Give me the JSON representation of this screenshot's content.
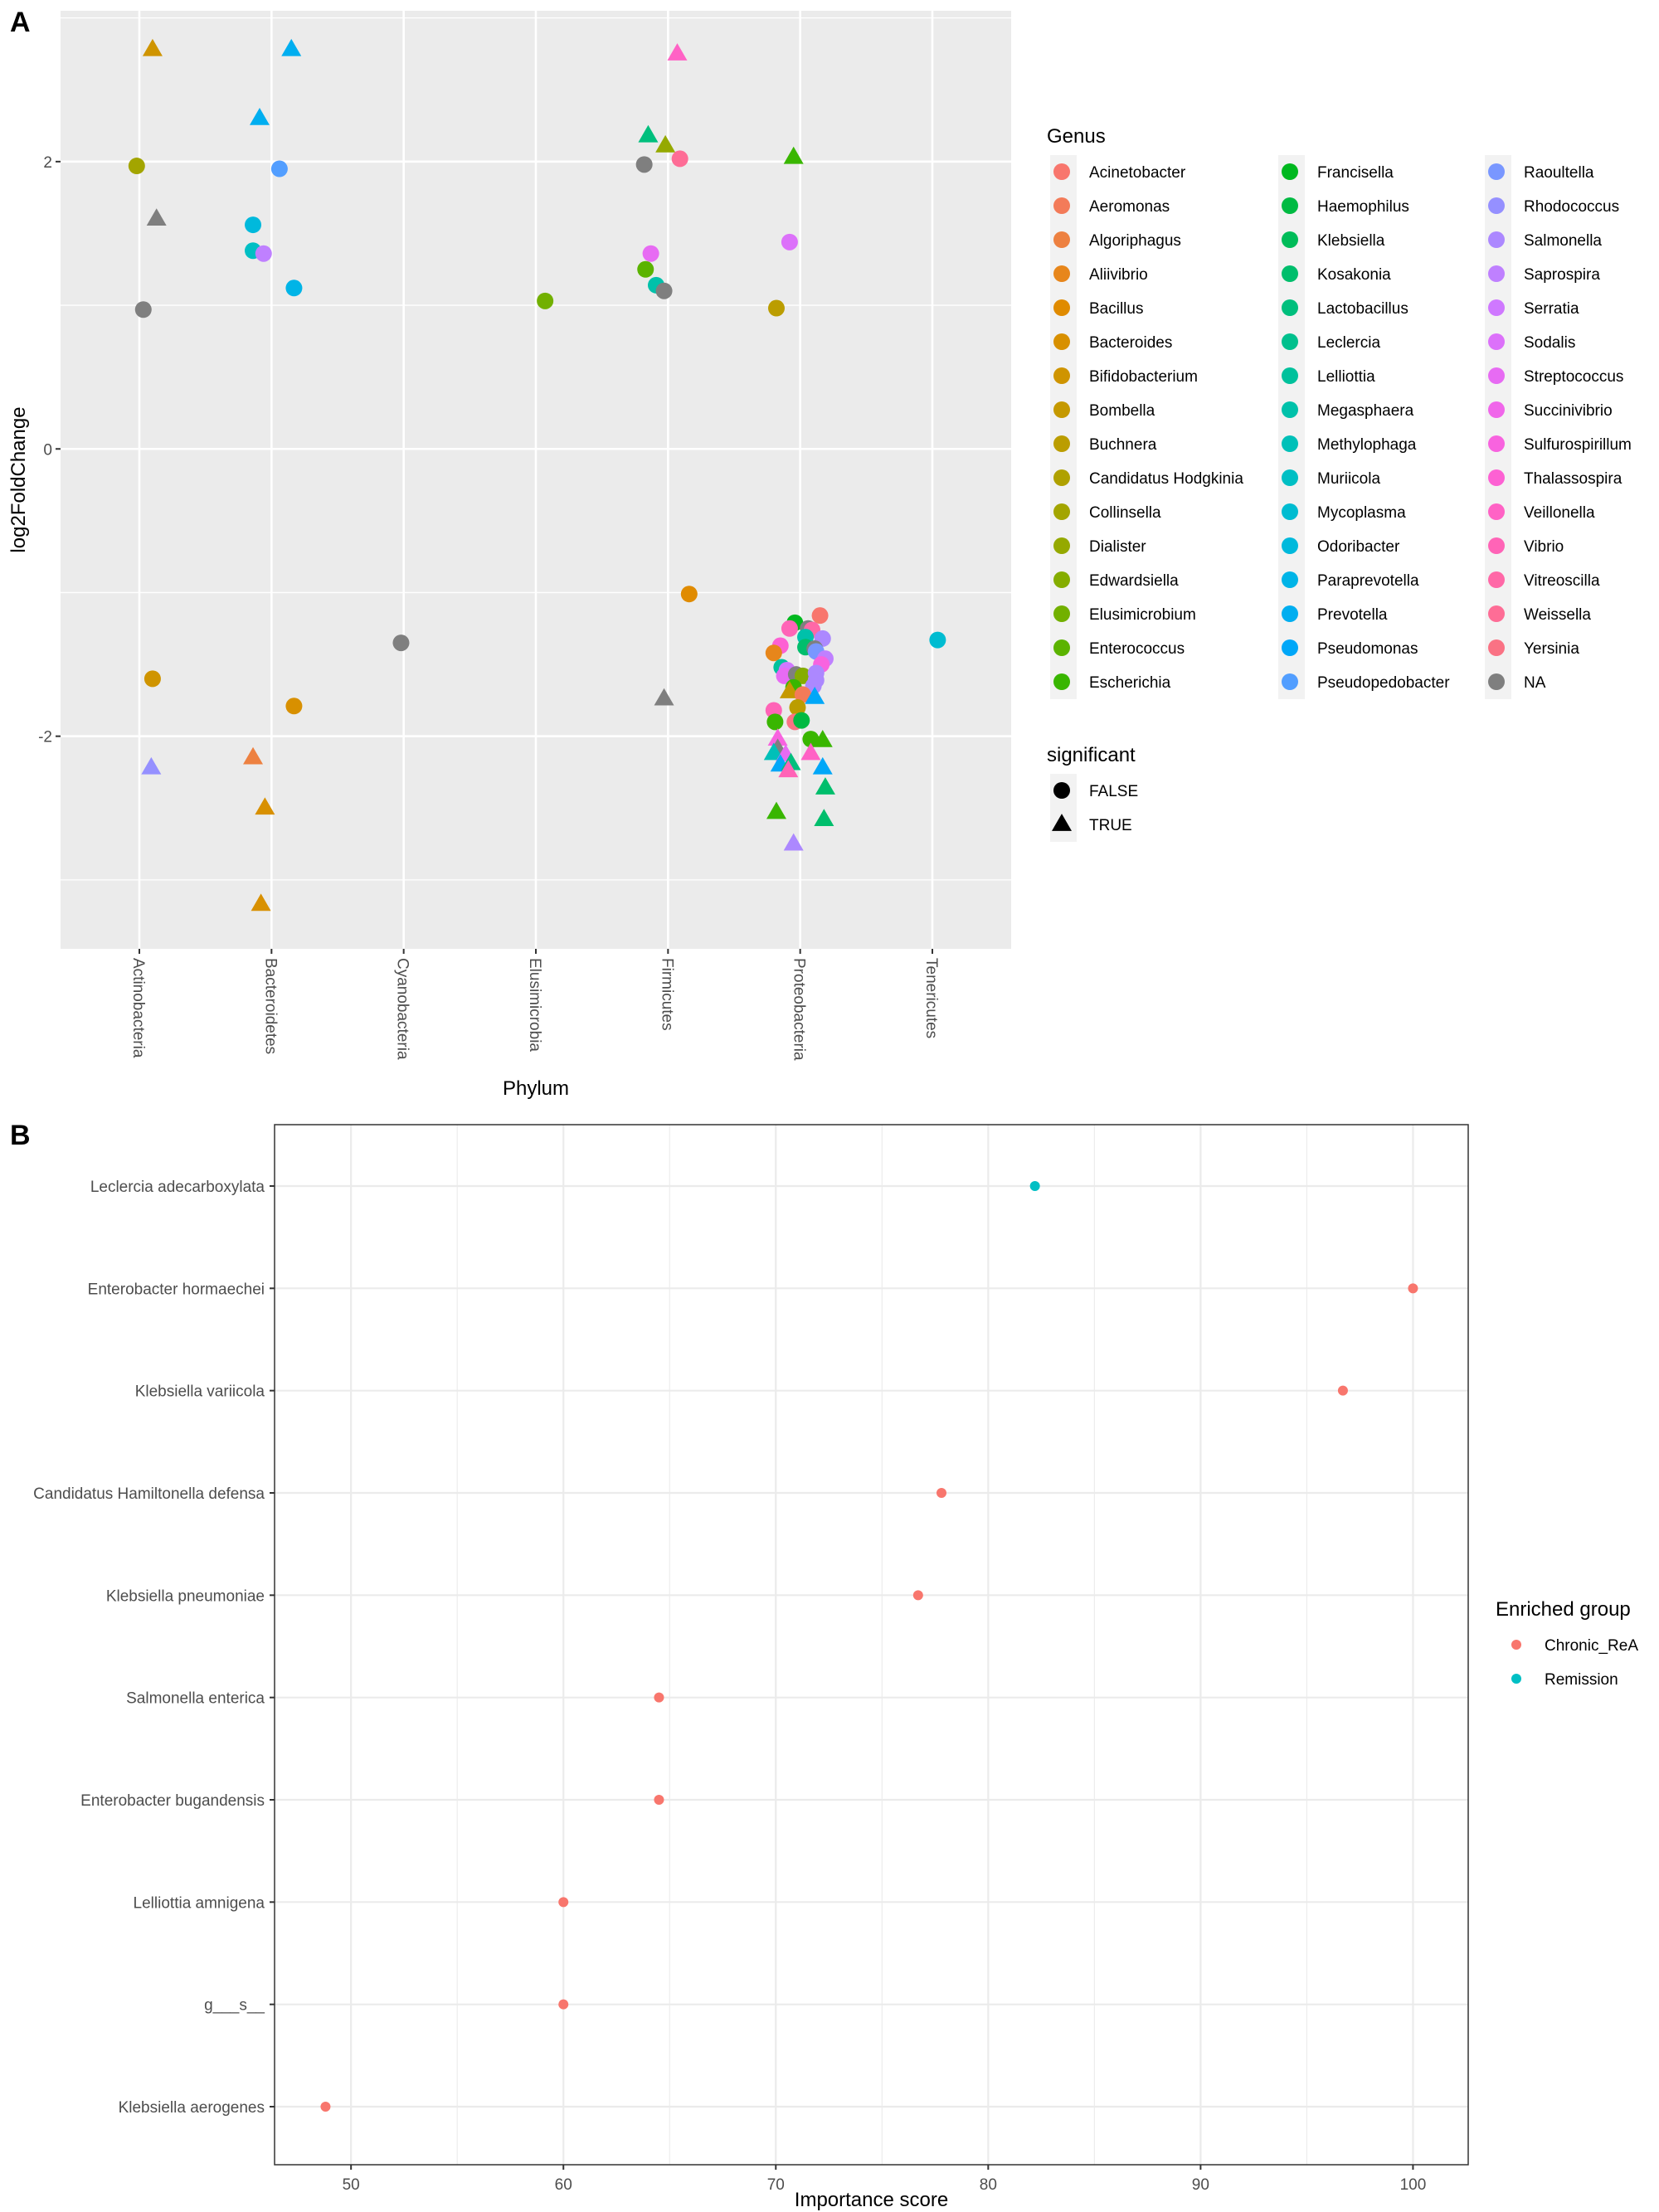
{
  "chart_data": [
    {
      "panel": "A",
      "type": "scatter",
      "xlabel": "Phylum",
      "ylabel": "log2FoldChange",
      "x_type": "categorical",
      "categories": [
        "Actinobacteria",
        "Bacteroidetes",
        "Cyanobacteria",
        "Elusimicrobia",
        "Firmicutes",
        "Proteobacteria",
        "Tenericutes"
      ],
      "ylim": [
        -3.48,
        3.05
      ],
      "yticks": [
        -2,
        0,
        2
      ],
      "ytick_labels": [
        "-2",
        "0",
        "2"
      ],
      "grid": true,
      "legend_color_title": "Genus",
      "legend_shape_title": "significant",
      "legend_placement": "right",
      "genus_legend": [
        {
          "name": "Acinetobacter",
          "color": "#F8766D"
        },
        {
          "name": "Aeromonas",
          "color": "#F37B59"
        },
        {
          "name": "Algoriphagus",
          "color": "#ED8141"
        },
        {
          "name": "Aliivibrio",
          "color": "#E7861B"
        },
        {
          "name": "Bacillus",
          "color": "#E08B00"
        },
        {
          "name": "Bacteroides",
          "color": "#D89000"
        },
        {
          "name": "Bifidobacterium",
          "color": "#CF9400"
        },
        {
          "name": "Bombella",
          "color": "#C59900"
        },
        {
          "name": "Buchnera",
          "color": "#BB9D00"
        },
        {
          "name": "Candidatus Hodgkinia",
          "color": "#AFA100"
        },
        {
          "name": "Collinsella",
          "color": "#A3A500"
        },
        {
          "name": "Dialister",
          "color": "#95A900"
        },
        {
          "name": "Edwardsiella",
          "color": "#85AD00"
        },
        {
          "name": "Elusimicrobium",
          "color": "#72B000"
        },
        {
          "name": "Enterococcus",
          "color": "#5BB300"
        },
        {
          "name": "Escherichia",
          "color": "#39B600"
        },
        {
          "name": "Francisella",
          "color": "#00B81F"
        },
        {
          "name": "Haemophilus",
          "color": "#00BA42"
        },
        {
          "name": "Klebsiella",
          "color": "#00BC59"
        },
        {
          "name": "Kosakonia",
          "color": "#00BE6C"
        },
        {
          "name": "Lactobacillus",
          "color": "#00BF7D"
        },
        {
          "name": "Leclercia",
          "color": "#00C08D"
        },
        {
          "name": "Lelliottia",
          "color": "#00C19C"
        },
        {
          "name": "Megasphaera",
          "color": "#00C1AA"
        },
        {
          "name": "Methylophaga",
          "color": "#00C0B8"
        },
        {
          "name": "Muriicola",
          "color": "#00BFC4"
        },
        {
          "name": "Mycoplasma",
          "color": "#00BCD1"
        },
        {
          "name": "Odoribacter",
          "color": "#00B9DC"
        },
        {
          "name": "Paraprevotella",
          "color": "#00B4E7"
        },
        {
          "name": "Prevotella",
          "color": "#00AEF0"
        },
        {
          "name": "Pseudomonas",
          "color": "#00A7F8"
        },
        {
          "name": "Pseudopedobacter",
          "color": "#529EFF"
        },
        {
          "name": "Raoultella",
          "color": "#7997FF"
        },
        {
          "name": "Rhodococcus",
          "color": "#9590FF"
        },
        {
          "name": "Salmonella",
          "color": "#AC88FF"
        },
        {
          "name": "Saprospira",
          "color": "#BF80FF"
        },
        {
          "name": "Serratia",
          "color": "#CF78FF"
        },
        {
          "name": "Sodalis",
          "color": "#DC71FA"
        },
        {
          "name": "Streptococcus",
          "color": "#E76BF3"
        },
        {
          "name": "Succinivibrio",
          "color": "#F066EA"
        },
        {
          "name": "Sulfurospirillum",
          "color": "#F863DF"
        },
        {
          "name": "Thalassospira",
          "color": "#FD61D3"
        },
        {
          "name": "Veillonella",
          "color": "#FF62C5"
        },
        {
          "name": "Vibrio",
          "color": "#FF64B7"
        },
        {
          "name": "Vitreoscilla",
          "color": "#FF68A7"
        },
        {
          "name": "Weissella",
          "color": "#FE6D96"
        },
        {
          "name": "Yersinia",
          "color": "#FA7284"
        },
        {
          "name": "NA",
          "color": "#7F7F7F"
        }
      ],
      "shape_legend": [
        {
          "label": "FALSE",
          "shape": "circle"
        },
        {
          "label": "TRUE",
          "shape": "triangle"
        }
      ],
      "points": [
        {
          "phylum": "Actinobacteria",
          "jitter": 0.1,
          "y": 2.78,
          "genus": "Bifidobacterium",
          "significant": true
        },
        {
          "phylum": "Actinobacteria",
          "jitter": -0.02,
          "y": 1.97,
          "genus": "Collinsella",
          "significant": false
        },
        {
          "phylum": "Actinobacteria",
          "jitter": 0.13,
          "y": 1.6,
          "genus": "NA",
          "significant": true
        },
        {
          "phylum": "Actinobacteria",
          "jitter": 0.03,
          "y": 0.97,
          "genus": "NA",
          "significant": false
        },
        {
          "phylum": "Actinobacteria",
          "jitter": 0.1,
          "y": -1.6,
          "genus": "Bifidobacterium",
          "significant": false
        },
        {
          "phylum": "Actinobacteria",
          "jitter": 0.09,
          "y": -2.22,
          "genus": "Rhodococcus",
          "significant": true
        },
        {
          "phylum": "Bacteroidetes",
          "jitter": 0.15,
          "y": 2.78,
          "genus": "Prevotella",
          "significant": true
        },
        {
          "phylum": "Bacteroidetes",
          "jitter": -0.09,
          "y": 2.3,
          "genus": "Prevotella",
          "significant": true
        },
        {
          "phylum": "Bacteroidetes",
          "jitter": 0.06,
          "y": 1.95,
          "genus": "Pseudopedobacter",
          "significant": false
        },
        {
          "phylum": "Bacteroidetes",
          "jitter": -0.14,
          "y": 1.56,
          "genus": "Odoribacter",
          "significant": false
        },
        {
          "phylum": "Bacteroidetes",
          "jitter": -0.14,
          "y": 1.38,
          "genus": "Muriicola",
          "significant": false
        },
        {
          "phylum": "Bacteroidetes",
          "jitter": -0.06,
          "y": 1.36,
          "genus": "Saprospira",
          "significant": false
        },
        {
          "phylum": "Bacteroidetes",
          "jitter": 0.17,
          "y": 1.12,
          "genus": "Paraprevotella",
          "significant": false
        },
        {
          "phylum": "Bacteroidetes",
          "jitter": 0.17,
          "y": -1.79,
          "genus": "Bacteroides",
          "significant": false
        },
        {
          "phylum": "Bacteroidetes",
          "jitter": -0.14,
          "y": -2.15,
          "genus": "Algoriphagus",
          "significant": true
        },
        {
          "phylum": "Bacteroidetes",
          "jitter": -0.05,
          "y": -2.5,
          "genus": "Bacteroides",
          "significant": true
        },
        {
          "phylum": "Bacteroidetes",
          "jitter": -0.08,
          "y": -3.17,
          "genus": "Bacteroides",
          "significant": true
        },
        {
          "phylum": "Cyanobacteria",
          "jitter": -0.02,
          "y": -1.35,
          "genus": "NA",
          "significant": false
        },
        {
          "phylum": "Elusimicrobia",
          "jitter": 0.07,
          "y": 1.03,
          "genus": "Elusimicrobium",
          "significant": false
        },
        {
          "phylum": "Firmicutes",
          "jitter": 0.07,
          "y": 2.75,
          "genus": "Veillonella",
          "significant": true
        },
        {
          "phylum": "Firmicutes",
          "jitter": -0.15,
          "y": 2.18,
          "genus": "Lactobacillus",
          "significant": true
        },
        {
          "phylum": "Firmicutes",
          "jitter": -0.02,
          "y": 2.11,
          "genus": "Dialister",
          "significant": true
        },
        {
          "phylum": "Firmicutes",
          "jitter": -0.18,
          "y": 1.98,
          "genus": "NA",
          "significant": false
        },
        {
          "phylum": "Firmicutes",
          "jitter": 0.09,
          "y": 2.02,
          "genus": "Weissella",
          "significant": false
        },
        {
          "phylum": "Firmicutes",
          "jitter": -0.13,
          "y": 1.36,
          "genus": "Streptococcus",
          "significant": false
        },
        {
          "phylum": "Firmicutes",
          "jitter": -0.17,
          "y": 1.25,
          "genus": "Enterococcus",
          "significant": false
        },
        {
          "phylum": "Firmicutes",
          "jitter": -0.09,
          "y": 1.14,
          "genus": "Megasphaera",
          "significant": false
        },
        {
          "phylum": "Firmicutes",
          "jitter": -0.03,
          "y": 1.1,
          "genus": "NA",
          "significant": false
        },
        {
          "phylum": "Firmicutes",
          "jitter": 0.16,
          "y": -1.01,
          "genus": "Bacillus",
          "significant": false
        },
        {
          "phylum": "Firmicutes",
          "jitter": -0.03,
          "y": -1.74,
          "genus": "NA",
          "significant": true
        },
        {
          "phylum": "Proteobacteria",
          "jitter": -0.05,
          "y": 2.03,
          "genus": "Escherichia",
          "significant": true
        },
        {
          "phylum": "Proteobacteria",
          "jitter": -0.08,
          "y": 1.44,
          "genus": "Sodalis",
          "significant": false
        },
        {
          "phylum": "Proteobacteria",
          "jitter": -0.18,
          "y": 0.98,
          "genus": "Buchnera",
          "significant": false
        },
        {
          "phylum": "Proteobacteria",
          "jitter": 0.15,
          "y": -1.16,
          "genus": "Acinetobacter",
          "significant": false
        },
        {
          "phylum": "Proteobacteria",
          "jitter": -0.04,
          "y": -1.21,
          "genus": "Francisella",
          "significant": false
        },
        {
          "phylum": "Proteobacteria",
          "jitter": -0.08,
          "y": -1.25,
          "genus": "Vibrio",
          "significant": false
        },
        {
          "phylum": "Proteobacteria",
          "jitter": 0.06,
          "y": -1.25,
          "genus": "NA",
          "significant": false
        },
        {
          "phylum": "Proteobacteria",
          "jitter": 0.09,
          "y": -1.26,
          "genus": "Vitreoscilla",
          "significant": false
        },
        {
          "phylum": "Proteobacteria",
          "jitter": 0.04,
          "y": -1.31,
          "genus": "Megasphaera",
          "significant": false
        },
        {
          "phylum": "Proteobacteria",
          "jitter": 0.17,
          "y": -1.32,
          "genus": "Salmonella",
          "significant": false
        },
        {
          "phylum": "Proteobacteria",
          "jitter": 0.04,
          "y": -1.38,
          "genus": "Kosakonia",
          "significant": false
        },
        {
          "phylum": "Proteobacteria",
          "jitter": 0.11,
          "y": -1.39,
          "genus": "NA",
          "significant": false
        },
        {
          "phylum": "Proteobacteria",
          "jitter": 0.12,
          "y": -1.41,
          "genus": "Raoultella",
          "significant": false
        },
        {
          "phylum": "Proteobacteria",
          "jitter": -0.15,
          "y": -1.37,
          "genus": "Thalassospira",
          "significant": false
        },
        {
          "phylum": "Proteobacteria",
          "jitter": -0.2,
          "y": -1.42,
          "genus": "Aliivibrio",
          "significant": false
        },
        {
          "phylum": "Proteobacteria",
          "jitter": 0.19,
          "y": -1.46,
          "genus": "Saprospira",
          "significant": false
        },
        {
          "phylum": "Proteobacteria",
          "jitter": 0.16,
          "y": -1.5,
          "genus": "Sulfurospirillum",
          "significant": false
        },
        {
          "phylum": "Proteobacteria",
          "jitter": -0.14,
          "y": -1.52,
          "genus": "Lelliottia",
          "significant": false
        },
        {
          "phylum": "Proteobacteria",
          "jitter": -0.1,
          "y": -1.54,
          "genus": "Serratia",
          "significant": false
        },
        {
          "phylum": "Proteobacteria",
          "jitter": -0.12,
          "y": -1.58,
          "genus": "Streptococcus",
          "significant": false
        },
        {
          "phylum": "Proteobacteria",
          "jitter": -0.03,
          "y": -1.57,
          "genus": "NA",
          "significant": false
        },
        {
          "phylum": "Proteobacteria",
          "jitter": 0.02,
          "y": -1.58,
          "genus": "Edwardsiella",
          "significant": false
        },
        {
          "phylum": "Proteobacteria",
          "jitter": 0.12,
          "y": -1.56,
          "genus": "Salmonella",
          "significant": false
        },
        {
          "phylum": "Proteobacteria",
          "jitter": 0.12,
          "y": -1.61,
          "genus": "Salmonella",
          "significant": false
        },
        {
          "phylum": "Proteobacteria",
          "jitter": 0.1,
          "y": -1.65,
          "genus": "Salmonella",
          "significant": false
        },
        {
          "phylum": "Proteobacteria",
          "jitter": -0.05,
          "y": -1.66,
          "genus": "Escherichia",
          "significant": false
        },
        {
          "phylum": "Proteobacteria",
          "jitter": -0.08,
          "y": -1.69,
          "genus": "Bombella",
          "significant": true
        },
        {
          "phylum": "Proteobacteria",
          "jitter": 0.02,
          "y": -1.71,
          "genus": "Aeromonas",
          "significant": false
        },
        {
          "phylum": "Proteobacteria",
          "jitter": 0.11,
          "y": -1.73,
          "genus": "Pseudomonas",
          "significant": true
        },
        {
          "phylum": "Proteobacteria",
          "jitter": -0.2,
          "y": -1.82,
          "genus": "Vibrio",
          "significant": false
        },
        {
          "phylum": "Proteobacteria",
          "jitter": -0.02,
          "y": -1.8,
          "genus": "Buchnera",
          "significant": false
        },
        {
          "phylum": "Proteobacteria",
          "jitter": -0.19,
          "y": -1.9,
          "genus": "Escherichia",
          "significant": false
        },
        {
          "phylum": "Proteobacteria",
          "jitter": -0.04,
          "y": -1.9,
          "genus": "Yersinia",
          "significant": false
        },
        {
          "phylum": "Proteobacteria",
          "jitter": 0.01,
          "y": -1.89,
          "genus": "Haemophilus",
          "significant": false
        },
        {
          "phylum": "Proteobacteria",
          "jitter": 0.08,
          "y": -2.02,
          "genus": "Escherichia",
          "significant": false
        },
        {
          "phylum": "Proteobacteria",
          "jitter": -0.17,
          "y": -2.02,
          "genus": "Sulfurospirillum",
          "significant": true
        },
        {
          "phylum": "Proteobacteria",
          "jitter": 0.17,
          "y": -2.03,
          "genus": "Escherichia",
          "significant": true
        },
        {
          "phylum": "Proteobacteria",
          "jitter": -0.17,
          "y": -2.09,
          "genus": "NA",
          "significant": true
        },
        {
          "phylum": "Proteobacteria",
          "jitter": -0.2,
          "y": -2.12,
          "genus": "Methylophaga",
          "significant": true
        },
        {
          "phylum": "Proteobacteria",
          "jitter": -0.11,
          "y": -2.13,
          "genus": "Streptococcus",
          "significant": true
        },
        {
          "phylum": "Proteobacteria",
          "jitter": 0.08,
          "y": -2.12,
          "genus": "Veillonella",
          "significant": true
        },
        {
          "phylum": "Proteobacteria",
          "jitter": -0.15,
          "y": -2.2,
          "genus": "Pseudomonas",
          "significant": true
        },
        {
          "phylum": "Proteobacteria",
          "jitter": -0.07,
          "y": -2.19,
          "genus": "Lactobacillus",
          "significant": true
        },
        {
          "phylum": "Proteobacteria",
          "jitter": -0.09,
          "y": -2.24,
          "genus": "Vibrio",
          "significant": true
        },
        {
          "phylum": "Proteobacteria",
          "jitter": 0.17,
          "y": -2.22,
          "genus": "Pseudomonas",
          "significant": true
        },
        {
          "phylum": "Proteobacteria",
          "jitter": 0.19,
          "y": -2.36,
          "genus": "Kosakonia",
          "significant": true
        },
        {
          "phylum": "Proteobacteria",
          "jitter": -0.18,
          "y": -2.53,
          "genus": "Escherichia",
          "significant": true
        },
        {
          "phylum": "Proteobacteria",
          "jitter": 0.18,
          "y": -2.58,
          "genus": "Kosakonia",
          "significant": true
        },
        {
          "phylum": "Proteobacteria",
          "jitter": -0.05,
          "y": -2.75,
          "genus": "Salmonella",
          "significant": true
        },
        {
          "phylum": "Tenericutes",
          "jitter": 0.04,
          "y": -1.33,
          "genus": "Mycoplasma",
          "significant": false
        }
      ]
    },
    {
      "panel": "B",
      "type": "scatter",
      "xlabel": "Importance score",
      "ylabel": "",
      "xlim": [
        46.4,
        102.6
      ],
      "xticks": [
        50,
        60,
        70,
        80,
        90,
        100
      ],
      "xtick_labels": [
        "50",
        "60",
        "70",
        "80",
        "90",
        "100"
      ],
      "grid": true,
      "legend_title": "Enriched group",
      "legend_placement": "right",
      "groups": [
        {
          "name": "Chronic_ReA",
          "color": "#F8766D"
        },
        {
          "name": "Remission",
          "color": "#00BFC4"
        }
      ],
      "categories": [
        "Leclercia adecarboxylata",
        "Enterobacter hormaechei",
        "Klebsiella variicola",
        "Candidatus Hamiltonella defensa",
        "Klebsiella pneumoniae",
        "Salmonella enterica",
        "Enterobacter bugandensis",
        "Lelliottia amnigena",
        "g___s__",
        "Klebsiella aerogenes"
      ],
      "values": [
        82.2,
        100.0,
        96.7,
        77.8,
        76.7,
        64.5,
        64.5,
        60.0,
        60.0,
        48.8
      ],
      "group_of_each": [
        "Remission",
        "Chronic_ReA",
        "Chronic_ReA",
        "Chronic_ReA",
        "Chronic_ReA",
        "Chronic_ReA",
        "Chronic_ReA",
        "Chronic_ReA",
        "Chronic_ReA",
        "Chronic_ReA"
      ]
    }
  ],
  "labels": {
    "panel_a": "A",
    "panel_b": "B"
  }
}
